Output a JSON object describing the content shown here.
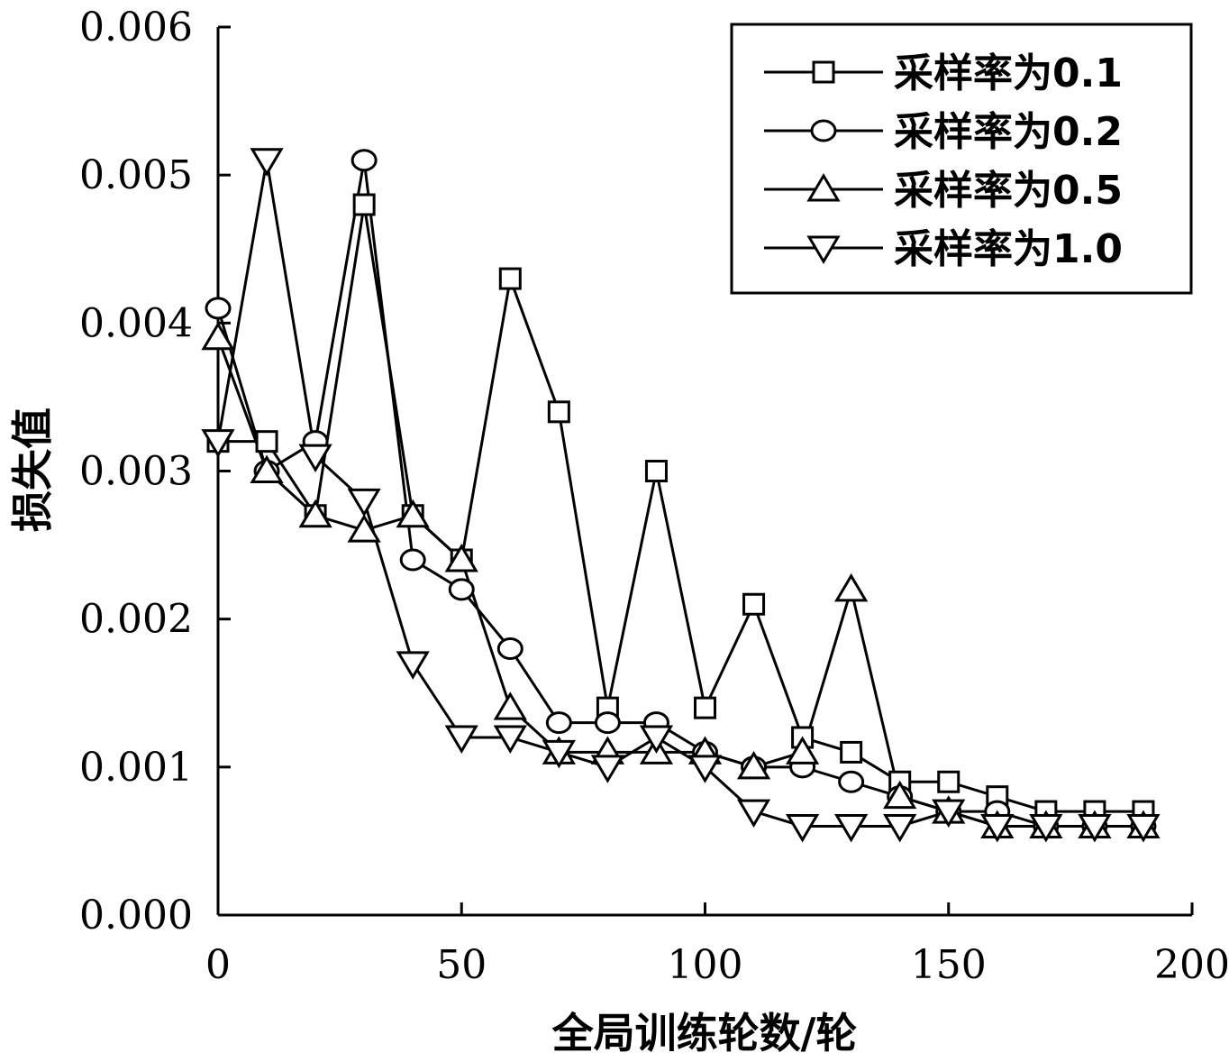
{
  "chart_data": {
    "type": "line",
    "title": "",
    "xlabel": "全局训练轮数/轮",
    "ylabel": "损失值",
    "xlim": [
      0,
      200
    ],
    "ylim": [
      0,
      0.006
    ],
    "xticks": [
      "0",
      "50",
      "100",
      "150",
      "200"
    ],
    "yticks": [
      "0.000",
      "0.001",
      "0.002",
      "0.003",
      "0.004",
      "0.005",
      "0.006"
    ],
    "grid": false,
    "legend_position": "top-right",
    "x": [
      0,
      10,
      20,
      30,
      40,
      50,
      60,
      70,
      80,
      90,
      100,
      110,
      120,
      130,
      140,
      150,
      160,
      170,
      180,
      190
    ],
    "series": [
      {
        "name": "采样率为0.1",
        "marker": "square",
        "values": [
          0.0032,
          0.0032,
          0.0027,
          0.0048,
          0.0027,
          0.0024,
          0.0043,
          0.0034,
          0.0014,
          0.003,
          0.0014,
          0.0021,
          0.0012,
          0.0011,
          0.0009,
          0.0009,
          0.0008,
          0.0007,
          0.0007,
          0.0007
        ]
      },
      {
        "name": "采样率为0.2",
        "marker": "circle",
        "values": [
          0.0041,
          0.003,
          0.0032,
          0.0051,
          0.0024,
          0.0022,
          0.0018,
          0.0013,
          0.0013,
          0.0013,
          0.0011,
          0.001,
          0.001,
          0.0009,
          0.0008,
          0.0007,
          0.0007,
          0.0006,
          0.0006,
          0.0006
        ]
      },
      {
        "name": "采样率为0.5",
        "marker": "triangle-up",
        "values": [
          0.0039,
          0.003,
          0.0027,
          0.0026,
          0.0027,
          0.0024,
          0.0014,
          0.0011,
          0.0011,
          0.0011,
          0.0011,
          0.001,
          0.0011,
          0.0022,
          0.0008,
          0.0007,
          0.0006,
          0.0006,
          0.0006,
          0.0006
        ]
      },
      {
        "name": "采样率为1.0",
        "marker": "triangle-down",
        "values": [
          0.0032,
          0.0051,
          0.0031,
          0.0028,
          0.0017,
          0.0012,
          0.0012,
          0.0011,
          0.001,
          0.0012,
          0.001,
          0.0007,
          0.0006,
          0.0006,
          0.0006,
          0.0007,
          0.0006,
          0.0006,
          0.0006,
          0.0006
        ]
      }
    ]
  }
}
